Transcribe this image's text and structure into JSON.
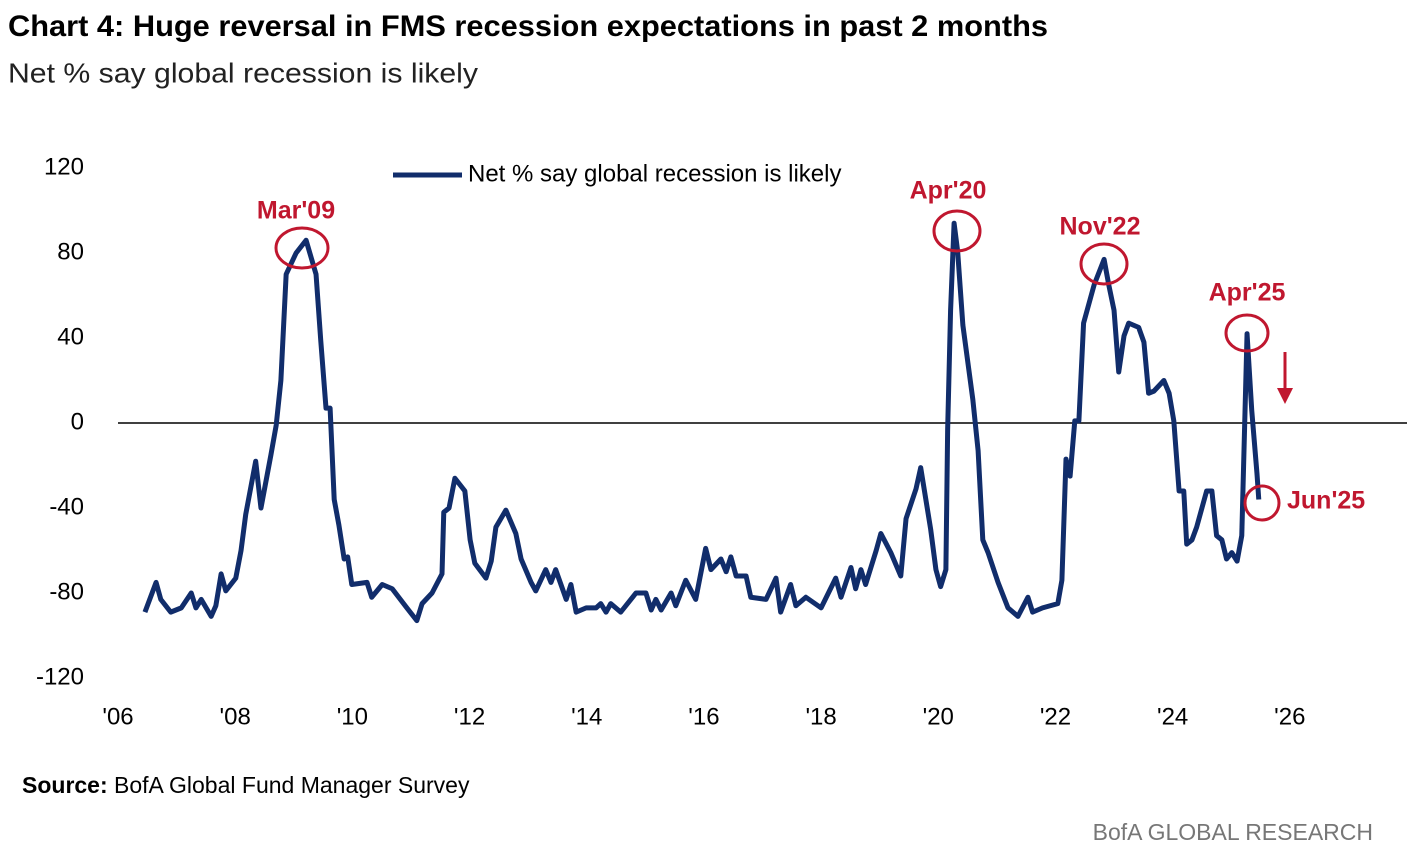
{
  "chart_data": {
    "type": "line",
    "title": "Chart 4: Huge reversal in FMS recession expectations in past 2 months",
    "subtitle": "Net % say global recession is likely",
    "x": [
      2006.46,
      2006.65,
      2006.73,
      2006.9,
      2007.08,
      2007.25,
      2007.33,
      2007.42,
      2007.59,
      2007.67,
      2007.76,
      2007.84,
      2008.01,
      2008.1,
      2008.18,
      2008.35,
      2008.44,
      2008.61,
      2008.7,
      2008.78,
      2008.87,
      2009.04,
      2009.21,
      2009.38,
      2009.46,
      2009.55,
      2009.62,
      2009.69,
      2009.77,
      2009.86,
      2009.92,
      2009.99,
      2010.25,
      2010.33,
      2010.51,
      2010.68,
      2010.93,
      2011.1,
      2011.19,
      2011.36,
      2011.53,
      2011.56,
      2011.65,
      2011.75,
      2011.92,
      2012.01,
      2012.09,
      2012.28,
      2012.37,
      2012.45,
      2012.62,
      2012.79,
      2012.88,
      2013.05,
      2013.13,
      2013.3,
      2013.39,
      2013.47,
      2013.65,
      2013.73,
      2013.82,
      2013.99,
      2014.16,
      2014.24,
      2014.33,
      2014.41,
      2014.58,
      2014.84,
      2015.01,
      2015.1,
      2015.18,
      2015.27,
      2015.44,
      2015.52,
      2015.69,
      2015.86,
      2016.03,
      2016.12,
      2016.29,
      2016.38,
      2016.46,
      2016.55,
      2016.72,
      2016.8,
      2017.06,
      2017.23,
      2017.31,
      2017.48,
      2017.57,
      2017.74,
      2018.0,
      2018.25,
      2018.34,
      2018.51,
      2018.59,
      2018.68,
      2018.76,
      2018.94,
      2019.02,
      2019.19,
      2019.36,
      2019.45,
      2019.62,
      2019.7,
      2019.87,
      2019.96,
      2020.04,
      2020.13,
      2020.16,
      2020.21,
      2020.27,
      2020.33,
      2020.42,
      2020.59,
      2020.68,
      2020.76,
      2020.85,
      2021.02,
      2021.19,
      2021.36,
      2021.53,
      2021.61,
      2021.78,
      2022.04,
      2022.11,
      2022.18,
      2022.25,
      2022.33,
      2022.4,
      2022.48,
      2022.66,
      2022.83,
      2022.91,
      2023.0,
      2023.08,
      2023.17,
      2023.25,
      2023.42,
      2023.51,
      2023.59,
      2023.68,
      2023.85,
      2023.94,
      2024.02,
      2024.11,
      2024.19,
      2024.24,
      2024.33,
      2024.41,
      2024.5,
      2024.58,
      2024.67,
      2024.75,
      2024.84,
      2024.92,
      2025.01,
      2025.1,
      2025.18,
      2025.27,
      2025.35,
      2025.44,
      2025.47
    ],
    "series": [
      {
        "name": "Net % say global recession is likely",
        "color": "#112d6b",
        "values": [
          -89,
          -75,
          -83,
          -89,
          -87,
          -80,
          -87,
          -83,
          -91,
          -86,
          -71,
          -79,
          -73,
          -60,
          -43,
          -18,
          -40,
          -15,
          -1,
          20,
          70,
          80,
          86,
          70,
          39,
          7,
          7,
          -36,
          -48,
          -64,
          -63,
          -76,
          -75,
          -82,
          -76,
          -78,
          -87,
          -93,
          -85,
          -80,
          -71,
          -42,
          -40,
          -26,
          -32,
          -55,
          -66,
          -73,
          -65,
          -49,
          -41,
          -52,
          -64,
          -75,
          -79,
          -69,
          -75,
          -69,
          -83,
          -76,
          -89,
          -87,
          -87,
          -85,
          -89,
          -85,
          -89,
          -80,
          -80,
          -88,
          -83,
          -88,
          -80,
          -86,
          -74,
          -83,
          -59,
          -69,
          -64,
          -70,
          -63,
          -72,
          -72,
          -82,
          -83,
          -73,
          -89,
          -76,
          -86,
          -82,
          -87,
          -73,
          -82,
          -68,
          -78,
          -69,
          -76,
          -60,
          -52,
          -61,
          -72,
          -45,
          -31,
          -21,
          -50,
          -69,
          -77,
          -69,
          -3,
          53,
          94,
          81,
          46,
          11,
          -13,
          -55,
          -61,
          -75,
          -87,
          -91,
          -82,
          -89,
          -87,
          -85,
          -74,
          -17,
          -25,
          1,
          1,
          47,
          65,
          77,
          65,
          53,
          24,
          41,
          47,
          45,
          38,
          14,
          15,
          20,
          14,
          1,
          -32,
          -32,
          -57,
          -55,
          -49,
          -40,
          -32,
          -32,
          -53,
          -55,
          -64,
          -61,
          -65,
          -53,
          42,
          6,
          -24,
          -36
        ]
      }
    ],
    "xlim": [
      2006,
      2028
    ],
    "ylim": [
      -120,
      120
    ],
    "xticks": [
      {
        "value": 2006,
        "label": "'06"
      },
      {
        "value": 2008,
        "label": "'08"
      },
      {
        "value": 2010,
        "label": "'10"
      },
      {
        "value": 2012,
        "label": "'12"
      },
      {
        "value": 2014,
        "label": "'14"
      },
      {
        "value": 2016,
        "label": "'16"
      },
      {
        "value": 2018,
        "label": "'18"
      },
      {
        "value": 2020,
        "label": "'20"
      },
      {
        "value": 2022,
        "label": "'22"
      },
      {
        "value": 2024,
        "label": "'24"
      },
      {
        "value": 2026,
        "label": "'26"
      }
    ],
    "yticks": [
      -120,
      -80,
      -40,
      0,
      40,
      80,
      120
    ],
    "annotations": [
      "Mar'09",
      "Apr'20",
      "Nov'22",
      "Apr'25",
      "Jun'25"
    ]
  },
  "source": {
    "label": "Source:",
    "text": "BofA Global Fund Manager Survey"
  },
  "footer": "BofA GLOBAL RESEARCH"
}
